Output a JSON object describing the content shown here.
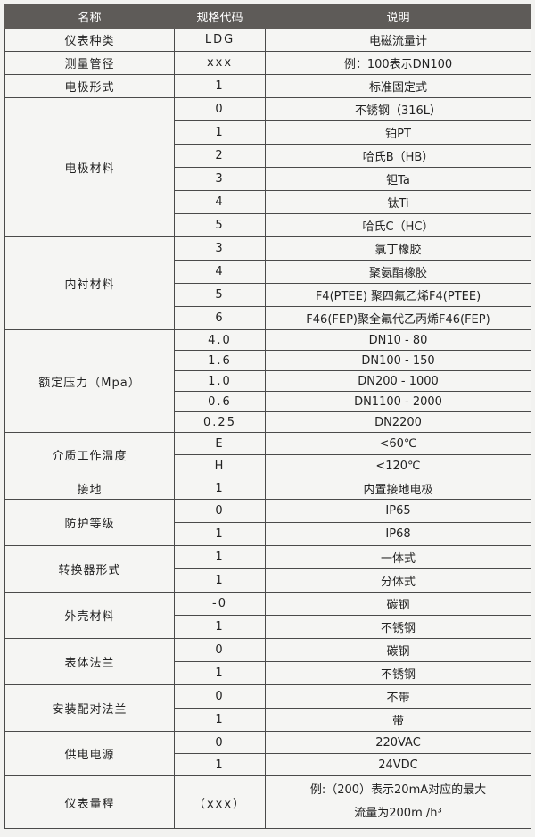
{
  "headers": [
    "名称",
    "规格代码",
    "说明"
  ],
  "groups": [
    {
      "name": "仪表种类",
      "h": 26,
      "rows": [
        [
          "LDG",
          "电磁流量计"
        ]
      ]
    },
    {
      "name": "测量管径",
      "h": 26,
      "rows": [
        [
          "xxx",
          "例：100表示DN100"
        ]
      ]
    },
    {
      "name": "电极形式",
      "h": 26,
      "rows": [
        [
          "1",
          "标准固定式"
        ]
      ]
    },
    {
      "name": "电极材料",
      "h": 26,
      "rows": [
        [
          "0",
          "不锈钢（316L）"
        ],
        [
          "1",
          "铂PT"
        ],
        [
          "2",
          "哈氏B（HB）"
        ],
        [
          "3",
          "钽Ta"
        ],
        [
          "4",
          "钛Ti"
        ],
        [
          "5",
          "哈氏C（HC）"
        ]
      ]
    },
    {
      "name": "内衬材料",
      "h": 26,
      "rows": [
        [
          "3",
          "氯丁橡胶"
        ],
        [
          "4",
          "聚氨酯橡胶"
        ],
        [
          "5",
          "F4(PTEE) 聚四氟乙烯F4(PTEE)"
        ],
        [
          "6",
          "F46(FEP)聚全氟代乙丙烯F46(FEP)"
        ]
      ]
    },
    {
      "name": "额定压力（Mpa）",
      "h": 23,
      "rows": [
        [
          "4.0",
          "DN10 - 80"
        ],
        [
          "1.6",
          "DN100 - 150"
        ],
        [
          "1.0",
          "DN200 - 1000"
        ],
        [
          "0.6",
          "DN1100 - 2000"
        ],
        [
          "0.25",
          "DN2200"
        ]
      ]
    },
    {
      "name": "介质工作温度",
      "h": 25,
      "rows": [
        [
          "E",
          "<60℃"
        ],
        [
          "H",
          "<120℃"
        ]
      ]
    },
    {
      "name": "接地",
      "h": 25,
      "rows": [
        [
          "1",
          "内置接地电极"
        ]
      ]
    },
    {
      "name": "防护等级",
      "h": 26,
      "rows": [
        [
          "0",
          "IP65"
        ],
        [
          "1",
          "IP68"
        ]
      ]
    },
    {
      "name": "转换器形式",
      "h": 26,
      "rows": [
        [
          "1",
          "一体式"
        ],
        [
          "1",
          "分体式"
        ]
      ]
    },
    {
      "name": "外壳材料",
      "h": 26,
      "rows": [
        [
          "-0",
          "碳钢"
        ],
        [
          "1",
          "不锈钢"
        ]
      ]
    },
    {
      "name": "表体法兰",
      "h": 26,
      "rows": [
        [
          "0",
          "碳钢"
        ],
        [
          "1",
          "不锈钢"
        ]
      ]
    },
    {
      "name": "安装配对法兰",
      "h": 26,
      "rows": [
        [
          "0",
          "不带"
        ],
        [
          "1",
          "带"
        ]
      ]
    },
    {
      "name": "供电电源",
      "h": 25,
      "rows": [
        [
          "0",
          "220VAC"
        ],
        [
          "1",
          "24VDC"
        ]
      ]
    },
    {
      "name": "仪表量程",
      "h": 59,
      "rows": [
        [
          "（xxx）",
          "例:（200）表示20mA对应的最大\n流量为200m /h³"
        ]
      ]
    }
  ]
}
